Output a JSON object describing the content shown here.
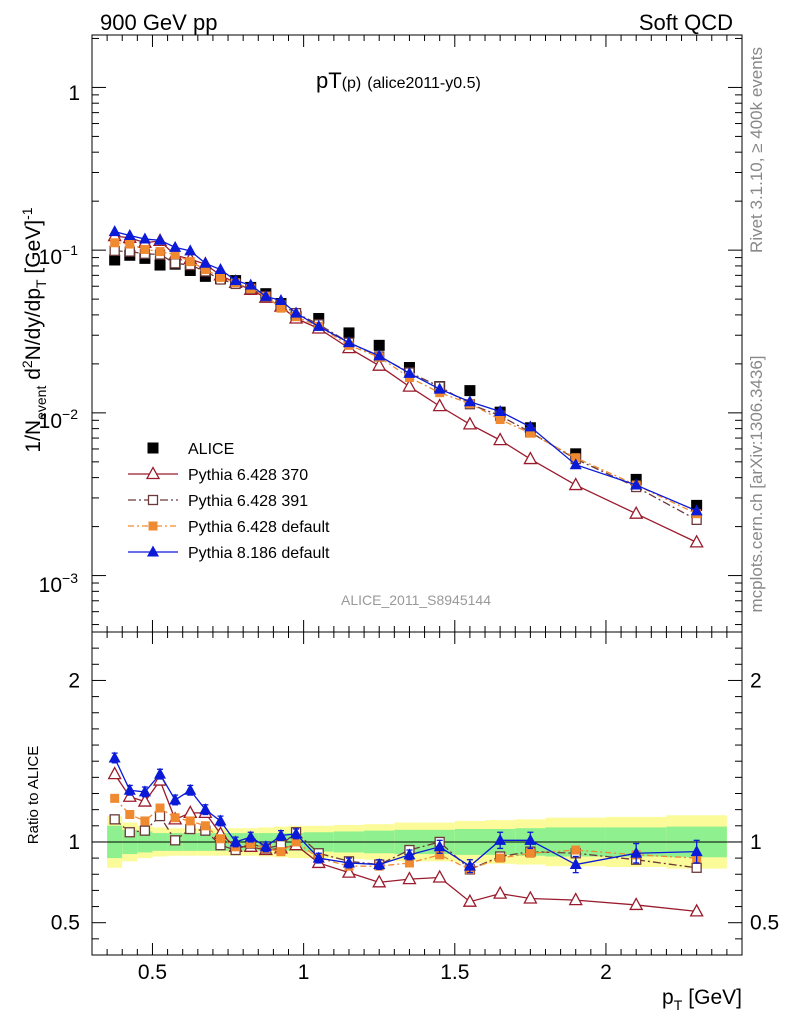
{
  "header": {
    "left": "900 GeV pp",
    "right": "Soft QCD"
  },
  "side": {
    "top": "Rivet 3.1.10, ≥ 400k events",
    "bottom": "mcplots.cern.ch [arXiv:1306.3436]"
  },
  "chart_data": {
    "type": "scatter",
    "title_main": "pT",
    "title_sub": "(p)",
    "title_tag": "(alice2011-y0.5)",
    "watermark": "ALICE_2011_S8945144",
    "xlabel_main": "p",
    "xlabel_sub": "T",
    "xlabel_unit": "[GeV]",
    "xlim": [
      0.3,
      2.45
    ],
    "x_ticks": [
      "0.5",
      "1",
      "1.5",
      "2"
    ],
    "main": {
      "scale": "log",
      "ylim": [
        0.00045,
        2.1
      ],
      "ylabel": "1/N_event d²N/dy/dp_T [GeV]⁻¹",
      "y_tick_labels": [
        "1",
        "10^-1",
        "10^-2",
        "10^-3"
      ]
    },
    "ratio": {
      "ylabel": "Ratio to ALICE",
      "ylim": [
        0.3,
        2.3
      ],
      "y_ticks": [
        "0.5",
        "1",
        "2"
      ]
    },
    "x": [
      0.375,
      0.425,
      0.475,
      0.525,
      0.575,
      0.625,
      0.675,
      0.725,
      0.775,
      0.825,
      0.875,
      0.925,
      0.975,
      1.05,
      1.15,
      1.25,
      1.35,
      1.45,
      1.55,
      1.65,
      1.75,
      1.9,
      2.1,
      2.3
    ],
    "legend": [
      "ALICE",
      "Pythia 6.428 370",
      "Pythia 6.428 391",
      "Pythia 6.428 default",
      "Pythia 8.186 default"
    ],
    "series": [
      {
        "name": "ALICE",
        "color": "#000000",
        "values": [
          0.087,
          0.093,
          0.089,
          0.081,
          0.082,
          0.075,
          0.069,
          0.067,
          0.065,
          0.059,
          0.054,
          0.047,
          0.039,
          0.038,
          0.031,
          0.026,
          0.019,
          0.0145,
          0.0137,
          0.0101,
          0.0081,
          0.0056,
          0.0039,
          0.0027
        ]
      },
      {
        "name": "Pythia 6.428 370",
        "color": "#9a1b2c",
        "values": [
          0.122,
          0.119,
          0.111,
          0.114,
          0.093,
          0.088,
          0.082,
          0.07,
          0.063,
          0.057,
          0.051,
          0.045,
          0.038,
          0.033,
          0.025,
          0.0195,
          0.0145,
          0.011,
          0.0085,
          0.0068,
          0.0052,
          0.0036,
          0.0024,
          0.0016
        ]
      },
      {
        "name": "Pythia 6.428 391",
        "color": "#6b3a3a",
        "values": [
          0.099,
          0.098,
          0.095,
          0.094,
          0.083,
          0.081,
          0.074,
          0.066,
          0.062,
          0.058,
          0.052,
          0.046,
          0.041,
          0.035,
          0.027,
          0.0222,
          0.0177,
          0.0145,
          0.0113,
          0.0096,
          0.0076,
          0.0052,
          0.0035,
          0.0022
        ]
      },
      {
        "name": "Pythia 6.428 default",
        "color": "#f08a30",
        "values": [
          0.111,
          0.109,
          0.101,
          0.098,
          0.094,
          0.085,
          0.076,
          0.068,
          0.063,
          0.058,
          0.052,
          0.044,
          0.039,
          0.034,
          0.026,
          0.022,
          0.0165,
          0.0133,
          0.0114,
          0.0091,
          0.0075,
          0.0053,
          0.0036,
          0.0024
        ]
      },
      {
        "name": "Pythia 8.186 default",
        "color": "#0a1ad6",
        "values": [
          0.13,
          0.123,
          0.117,
          0.115,
          0.104,
          0.099,
          0.083,
          0.076,
          0.065,
          0.061,
          0.052,
          0.049,
          0.041,
          0.034,
          0.027,
          0.0224,
          0.0175,
          0.014,
          0.0117,
          0.0102,
          0.0082,
          0.0048,
          0.0036,
          0.0025
        ]
      }
    ],
    "ratio_series": [
      {
        "name": "Pythia 6.428 370",
        "values": [
          1.42,
          1.28,
          1.25,
          1.38,
          1.14,
          1.18,
          1.18,
          1.05,
          0.97,
          0.97,
          0.95,
          0.96,
          0.98,
          0.87,
          0.81,
          0.75,
          0.77,
          0.78,
          0.63,
          0.68,
          0.65,
          0.64,
          0.61,
          0.57
        ]
      },
      {
        "name": "Pythia 6.428 391",
        "values": [
          1.14,
          1.06,
          1.07,
          1.16,
          1.01,
          1.08,
          1.07,
          0.98,
          0.95,
          0.99,
          0.96,
          0.98,
          1.06,
          0.93,
          0.88,
          0.86,
          0.95,
          1.0,
          0.83,
          0.91,
          0.94,
          0.93,
          0.89,
          0.84
        ]
      },
      {
        "name": "Pythia 6.428 default",
        "values": [
          1.27,
          1.17,
          1.13,
          1.21,
          1.15,
          1.13,
          1.1,
          1.02,
          0.97,
          0.99,
          0.96,
          0.94,
          1.0,
          0.9,
          0.85,
          0.85,
          0.87,
          0.92,
          0.83,
          0.9,
          0.93,
          0.95,
          0.92,
          0.9
        ]
      },
      {
        "name": "Pythia 8.186 default",
        "values": [
          1.52,
          1.32,
          1.31,
          1.42,
          1.26,
          1.32,
          1.2,
          1.13,
          1.0,
          1.03,
          0.97,
          1.04,
          1.05,
          0.9,
          0.87,
          0.86,
          0.92,
          0.97,
          0.85,
          1.01,
          1.01,
          0.86,
          0.93,
          0.94
        ]
      }
    ],
    "ratio_errors": [
      0.03,
      0.03,
      0.03,
      0.03,
      0.03,
      0.03,
      0.03,
      0.03,
      0.03,
      0.03,
      0.03,
      0.03,
      0.03,
      0.03,
      0.03,
      0.03,
      0.03,
      0.04,
      0.04,
      0.05,
      0.05,
      0.05,
      0.06,
      0.07
    ],
    "bands": {
      "inner_color": "#8ef08e",
      "outer_color": "#fbfb9a",
      "edges": [
        0.35,
        0.4,
        0.45,
        0.5,
        0.55,
        0.6,
        0.65,
        0.7,
        0.75,
        0.8,
        0.85,
        0.9,
        0.95,
        1.0,
        1.1,
        1.2,
        1.3,
        1.4,
        1.5,
        1.6,
        1.7,
        1.8,
        2.0,
        2.2,
        2.4
      ],
      "inner_half": [
        0.1,
        0.075,
        0.065,
        0.055,
        0.055,
        0.055,
        0.055,
        0.055,
        0.055,
        0.055,
        0.055,
        0.055,
        0.055,
        0.06,
        0.065,
        0.07,
        0.075,
        0.075,
        0.08,
        0.08,
        0.085,
        0.09,
        0.09,
        0.095
      ],
      "outer_half": [
        0.16,
        0.12,
        0.1,
        0.09,
        0.085,
        0.085,
        0.085,
        0.085,
        0.085,
        0.085,
        0.09,
        0.095,
        0.1,
        0.1,
        0.105,
        0.11,
        0.12,
        0.12,
        0.13,
        0.135,
        0.14,
        0.15,
        0.155,
        0.165
      ]
    }
  }
}
